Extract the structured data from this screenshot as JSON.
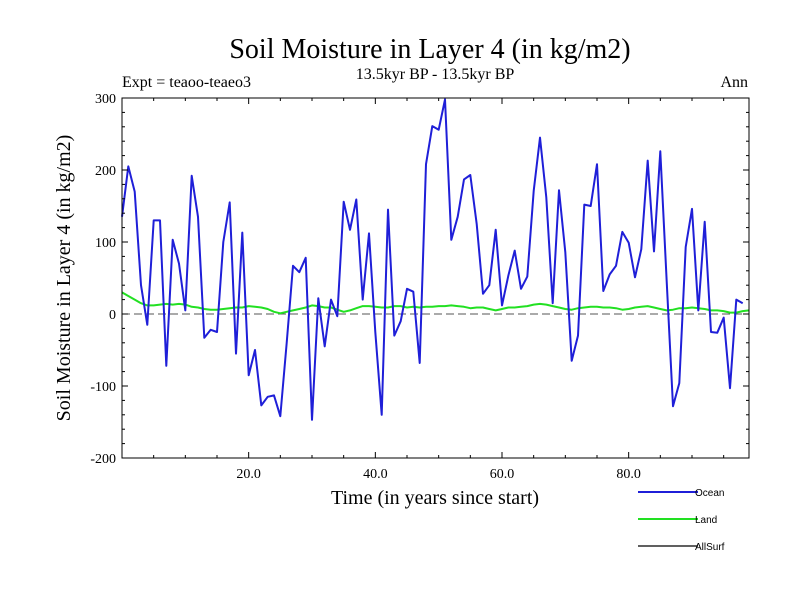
{
  "chart_data": {
    "type": "line",
    "title": "Soil Moisture in Layer 4 (in kg/m2)",
    "subtitle": "13.5kyr BP - 13.5kyr BP",
    "expt_label": "Expt = teaoo-teaeo3",
    "season_label": "Ann",
    "xlabel": "Time (in years since start)",
    "ylabel": "Soil Moisture in Layer 4 (in kg/m2)",
    "xlim": [
      0,
      99
    ],
    "ylim": [
      -200,
      300
    ],
    "x_ticks": [
      20,
      40,
      60,
      80
    ],
    "x_tick_labels": [
      "20.0",
      "40.0",
      "60.0",
      "80.0"
    ],
    "y_ticks": [
      -200,
      -100,
      0,
      100,
      200,
      300
    ],
    "y_tick_labels": [
      "-200",
      "-100",
      "0",
      "100",
      "200",
      "300"
    ],
    "zero_line": "dashed",
    "legend_position": "bottom-right",
    "series": [
      {
        "name": "Ocean",
        "color": "#1f1fd8",
        "x_start": 0,
        "values": [
          135,
          205,
          170,
          40,
          -15,
          130,
          130,
          -72,
          103,
          70,
          5,
          192,
          135,
          -33,
          -22,
          -25,
          100,
          155,
          -55,
          113,
          -85,
          -50,
          -127,
          -115,
          -113,
          -142,
          -40,
          67,
          58,
          78,
          -147,
          22,
          -45,
          20,
          -3,
          156,
          117,
          159,
          20,
          112,
          -25,
          -140,
          145,
          -30,
          -10,
          35,
          31,
          -68,
          208,
          261,
          256,
          298,
          103,
          135,
          187,
          193,
          125,
          28,
          40,
          117,
          12,
          53,
          88,
          35,
          52,
          171,
          245,
          162,
          15,
          172,
          86,
          -65,
          -30,
          152,
          150,
          208,
          32,
          55,
          67,
          114,
          99,
          51,
          90,
          213,
          87,
          226,
          45,
          -128,
          -96,
          93,
          146,
          5,
          128,
          -25,
          -26,
          -5,
          -103,
          20,
          15
        ],
        "stroke_width": 2
      },
      {
        "name": "Land",
        "color": "#22e022",
        "x_start": 0,
        "values": [
          30,
          25,
          20,
          15,
          12,
          12,
          13,
          14,
          13,
          14,
          13,
          10,
          9,
          7,
          6,
          6,
          7,
          8,
          9,
          9,
          11,
          10,
          9,
          7,
          3,
          1,
          3,
          5,
          7,
          9,
          12,
          11,
          9,
          9,
          6,
          3,
          5,
          8,
          11,
          11,
          10,
          9,
          9,
          11,
          11,
          9,
          10,
          9,
          10,
          10,
          11,
          11,
          12,
          11,
          10,
          8,
          9,
          9,
          7,
          5,
          7,
          9,
          9,
          10,
          11,
          13,
          14,
          13,
          11,
          9,
          7,
          6,
          8,
          9,
          10,
          10,
          9,
          9,
          8,
          6,
          7,
          9,
          10,
          11,
          9,
          7,
          5,
          6,
          8,
          8,
          9,
          8,
          7,
          5,
          5,
          4,
          2,
          2,
          4,
          5
        ],
        "stroke_width": 2
      },
      {
        "name": "AllSurf",
        "color": "#000000",
        "x_start": 0,
        "values": [],
        "stroke_width": 1.2
      }
    ]
  }
}
